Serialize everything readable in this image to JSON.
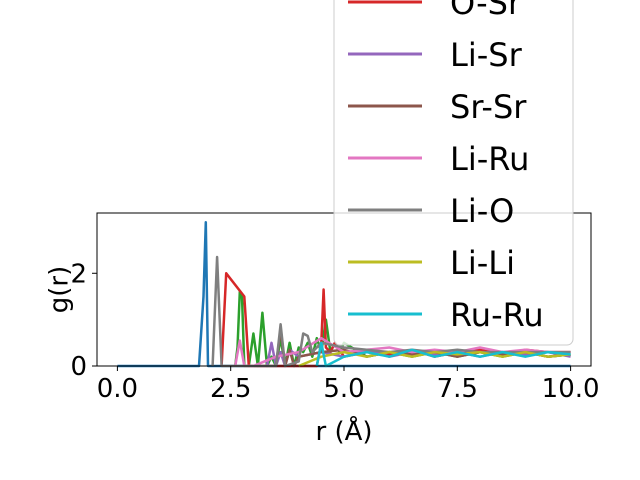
{
  "chart_data": {
    "type": "line",
    "xlabel": "r (Å)",
    "ylabel": "g(r)",
    "xlim": [
      -0.45,
      10.45
    ],
    "ylim": [
      0,
      3.3
    ],
    "xticks": [
      0.0,
      2.5,
      5.0,
      7.5,
      10.0
    ],
    "xtick_labels": [
      "0.0",
      "2.5",
      "5.0",
      "7.5",
      "10.0"
    ],
    "yticks": [
      0,
      2
    ],
    "ytick_labels": [
      "0",
      "2"
    ],
    "grid": false,
    "legend_position": "upper right (overflowing top)",
    "series": [
      {
        "name": "",
        "color": "#1f77b4",
        "x": [
          0.0,
          1.8,
          1.9,
          1.95,
          2.0,
          3.0,
          5.0,
          7.5,
          10.0
        ],
        "y": [
          0,
          0,
          1.5,
          3.1,
          0,
          0,
          0,
          0,
          0
        ]
      },
      {
        "name": "",
        "color": "#2ca02c",
        "x": [
          2.6,
          2.65,
          2.7,
          2.75,
          2.8,
          2.9,
          3.0,
          3.1,
          3.2,
          3.3,
          3.4,
          3.5,
          3.6,
          3.7,
          3.8,
          3.9,
          4.0,
          4.1,
          4.2,
          4.3,
          4.4,
          4.5,
          4.6,
          4.7,
          4.8,
          4.9,
          5.0,
          5.5,
          6.0,
          6.5,
          7.0,
          7.5,
          8.0,
          8.5,
          9.0,
          9.5,
          10.0
        ],
        "y": [
          0,
          0.4,
          1.6,
          1.5,
          0,
          0,
          0.7,
          0,
          1.15,
          0,
          0.2,
          0,
          0.6,
          0,
          0.5,
          0,
          0.4,
          0.3,
          0.5,
          0.2,
          0.6,
          0.3,
          1.0,
          0.3,
          0.5,
          0.3,
          0.5,
          0.2,
          0.3,
          0.2,
          0.3,
          0.2,
          0.3,
          0.2,
          0.3,
          0.2,
          0.25
        ]
      },
      {
        "name": "O-Sr",
        "color": "#d62728",
        "x": [
          2.3,
          2.4,
          2.8,
          2.9,
          4.4,
          4.5,
          4.55,
          4.6,
          4.7,
          4.8,
          5.0,
          5.5,
          6.0,
          6.5,
          7.0,
          7.5,
          8.0,
          8.5,
          9.0,
          9.5,
          10.0
        ],
        "y": [
          0,
          2.0,
          1.5,
          0,
          0,
          0.5,
          1.65,
          0.4,
          0.3,
          0.5,
          0.2,
          0.3,
          0.25,
          0.35,
          0.2,
          0.3,
          0.35,
          0.25,
          0.35,
          0.3,
          0.3
        ]
      },
      {
        "name": "Li-Sr",
        "color": "#9467bd",
        "x": [
          3.3,
          3.4,
          3.5,
          3.6,
          3.7,
          3.8,
          4.0,
          4.5,
          5.0,
          5.5,
          6.0,
          6.5,
          7.0,
          7.5,
          8.0,
          8.5,
          9.0,
          9.5,
          10.0
        ],
        "y": [
          0,
          0.5,
          0,
          0.3,
          0,
          0.35,
          0.2,
          0.3,
          0.2,
          0.35,
          0.2,
          0.3,
          0.25,
          0.3,
          0.2,
          0.3,
          0.25,
          0.3,
          0.2
        ]
      },
      {
        "name": "Sr-Sr",
        "color": "#8c564b",
        "x": [
          3.5,
          3.6,
          3.7,
          3.8,
          3.9,
          4.0,
          4.5,
          5.0,
          5.5,
          6.0,
          6.5,
          7.0,
          7.5,
          8.0,
          8.5,
          9.0,
          9.5,
          10.0
        ],
        "y": [
          0,
          0.8,
          0,
          0.35,
          0,
          0.2,
          0.3,
          0.35,
          0.2,
          0.3,
          0.25,
          0.3,
          0.2,
          0.3,
          0.25,
          0.3,
          0.2,
          0.25
        ]
      },
      {
        "name": "Li-Ru",
        "color": "#e377c2",
        "x": [
          2.6,
          2.7,
          2.8,
          3.0,
          3.5,
          4.0,
          4.5,
          5.0,
          5.5,
          6.0,
          6.5,
          7.0,
          7.5,
          8.0,
          8.5,
          9.0,
          9.5,
          10.0
        ],
        "y": [
          0,
          0.55,
          0,
          0,
          0.2,
          0.3,
          0.6,
          0.3,
          0.35,
          0.4,
          0.3,
          0.35,
          0.3,
          0.4,
          0.3,
          0.35,
          0.3,
          0.3
        ]
      },
      {
        "name": "Li-O",
        "color": "#7f7f7f",
        "x": [
          2.1,
          2.2,
          2.3,
          3.0,
          3.5,
          3.6,
          3.7,
          4.0,
          4.1,
          4.2,
          4.3,
          4.5,
          5.0,
          5.5,
          6.0,
          6.5,
          7.0,
          7.5,
          8.0,
          8.5,
          9.0,
          9.5,
          10.0
        ],
        "y": [
          0,
          2.35,
          0,
          0,
          0,
          0.9,
          0,
          0.1,
          0.7,
          0.65,
          0.3,
          0.5,
          0.4,
          0.35,
          0.3,
          0.35,
          0.3,
          0.35,
          0.3,
          0.3,
          0.3,
          0.3,
          0.3
        ]
      },
      {
        "name": "Li-Li",
        "color": "#bcbd22",
        "x": [
          4.0,
          4.5,
          5.0,
          5.5,
          6.0,
          6.5,
          7.0,
          7.5,
          8.0,
          8.5,
          9.0,
          9.5,
          10.0
        ],
        "y": [
          0,
          0.2,
          0.3,
          0.2,
          0.3,
          0.2,
          0.3,
          0.25,
          0.3,
          0.2,
          0.3,
          0.2,
          0.25
        ]
      },
      {
        "name": "Ru-Ru",
        "color": "#17becf",
        "x": [
          4.4,
          4.5,
          4.6,
          5.0,
          5.5,
          6.0,
          6.5,
          7.0,
          7.5,
          8.0,
          8.5,
          9.0,
          9.5,
          10.0
        ],
        "y": [
          0,
          0.5,
          0,
          0.2,
          0.3,
          0.2,
          0.35,
          0.2,
          0.3,
          0.2,
          0.3,
          0.2,
          0.3,
          0.25
        ]
      }
    ],
    "legend_entries": [
      {
        "label": "O-Sr",
        "color": "#d62728"
      },
      {
        "label": "Li-Sr",
        "color": "#9467bd"
      },
      {
        "label": "Sr-Sr",
        "color": "#8c564b"
      },
      {
        "label": "Li-Ru",
        "color": "#e377c2"
      },
      {
        "label": "Li-O",
        "color": "#7f7f7f"
      },
      {
        "label": "Li-Li",
        "color": "#bcbd22"
      },
      {
        "label": "Ru-Ru",
        "color": "#17becf"
      }
    ]
  }
}
